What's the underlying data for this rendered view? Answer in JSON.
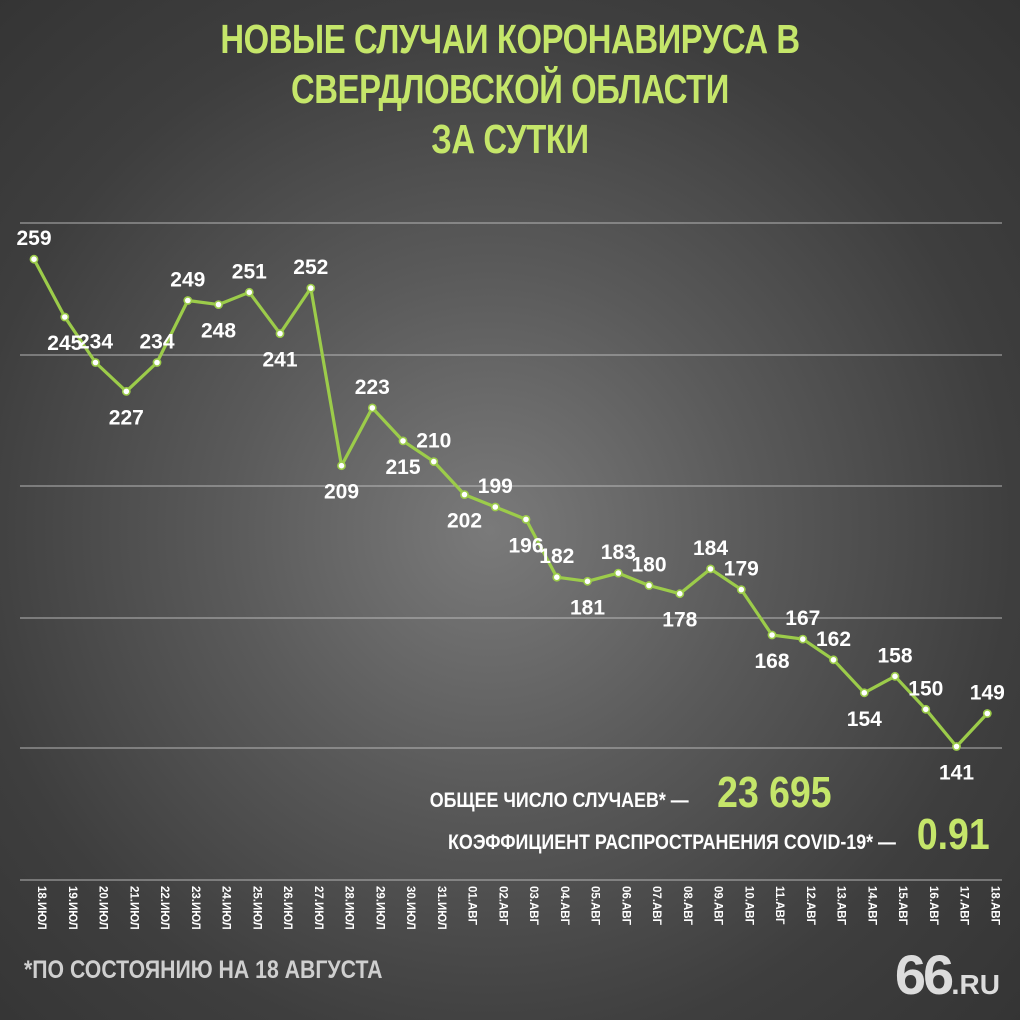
{
  "title_line1": "НОВЫЕ СЛУЧАИ КОРОНАВИРУСА В СВЕРДЛОВСКОЙ ОБЛАСТИ",
  "title_line2": "ЗА СУТКИ",
  "summary": {
    "total_label": "ОБЩЕЕ ЧИСЛО СЛУЧАЕВ* —",
    "total_value": "23 695",
    "coef_label": "КОЭФФИЦИЕНТ РАСПРОСТРАНЕНИЯ COVID-19* —",
    "coef_value": "0.91"
  },
  "footnote": "*ПО СОСТОЯНИЮ НА 18 АВГУСТА",
  "logo": {
    "number": "66",
    "dot": ".",
    "domain": "RU"
  },
  "colors": {
    "accent": "#c5e66a",
    "line": "#9ccc4a",
    "text": "#ffffff",
    "grid": "#c8c8c8"
  },
  "chart_data": {
    "type": "line",
    "categories": [
      "18.ИЮЛ",
      "19.ИЮЛ",
      "20.ИЮЛ",
      "21.ИЮЛ",
      "22.ИЮЛ",
      "23.ИЮЛ",
      "24.ИЮЛ",
      "25.ИЮЛ",
      "26.ИЮЛ",
      "27.ИЮЛ",
      "28.ИЮЛ",
      "29.ИЮЛ",
      "30.ИЮЛ",
      "31.ИЮЛ",
      "01.АВГ",
      "02.АВГ",
      "03.АВГ",
      "04.АВГ",
      "05.АВГ",
      "06.АВГ",
      "07.АВГ",
      "08.АВГ",
      "09.АВГ",
      "10.АВГ",
      "11.АВГ",
      "12.АВГ",
      "13.АВГ",
      "14.АВГ",
      "15.АВГ",
      "16.АВГ",
      "17.АВГ",
      "18.АВГ"
    ],
    "values": [
      259,
      245,
      234,
      227,
      234,
      249,
      248,
      251,
      241,
      252,
      209,
      223,
      215,
      210,
      202,
      199,
      196,
      182,
      181,
      183,
      180,
      178,
      184,
      179,
      168,
      167,
      162,
      154,
      158,
      150,
      141,
      149
    ],
    "label_position": [
      "above",
      "below",
      "above",
      "below",
      "above",
      "above",
      "below",
      "above",
      "below",
      "above",
      "below",
      "above",
      "below",
      "above",
      "below",
      "above",
      "below",
      "above",
      "below",
      "above",
      "above",
      "below",
      "above",
      "above",
      "below",
      "above",
      "above",
      "below",
      "above",
      "above",
      "below",
      "above"
    ],
    "title": "НОВЫЕ СЛУЧАИ КОРОНАВИРУСА В СВЕРДЛОВСКОЙ ОБЛАСТИ ЗА СУТКИ",
    "xlabel": "",
    "ylabel": "",
    "grid": true,
    "ylim": [
      60,
      270
    ]
  }
}
